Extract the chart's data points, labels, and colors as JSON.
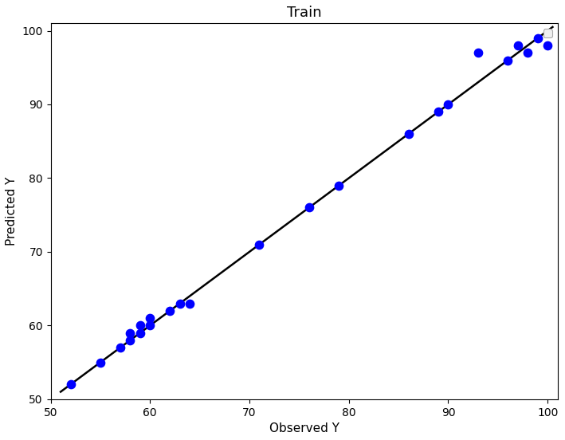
{
  "title": "Train",
  "xlabel": "Observed Y",
  "ylabel": "Predicted Y",
  "xlim": [
    50,
    101
  ],
  "ylim": [
    50,
    101
  ],
  "xticks": [
    50,
    60,
    70,
    80,
    90,
    100
  ],
  "yticks": [
    50,
    60,
    70,
    80,
    90,
    100
  ],
  "scatter_x": [
    52,
    55,
    57,
    58,
    58,
    59,
    59,
    60,
    60,
    62,
    63,
    64,
    71,
    76,
    79,
    86,
    89,
    90,
    93,
    96,
    97,
    98,
    99,
    100
  ],
  "scatter_y": [
    52,
    55,
    57,
    58,
    59,
    59,
    60,
    60,
    61,
    62,
    63,
    63,
    71,
    76,
    79,
    86,
    89,
    90,
    97,
    96,
    98,
    97,
    99,
    98
  ],
  "scatter_color": "#0000ff",
  "scatter_size": 55,
  "line_color": "#000000",
  "line_width": 1.8,
  "background_color": "#ffffff",
  "title_fontsize": 13,
  "label_fontsize": 11,
  "tick_fontsize": 10,
  "line_start": 51,
  "line_end": 100.5
}
